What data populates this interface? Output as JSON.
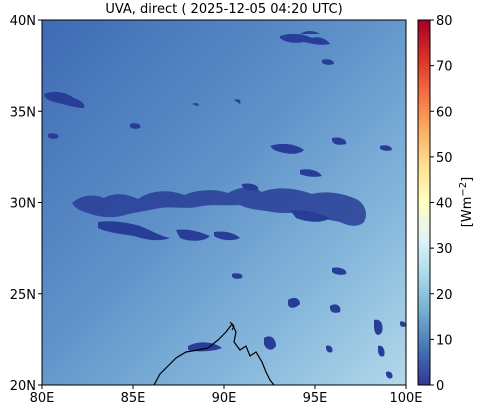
{
  "title": "UVA, direct ( 2025-12-05 04:20 UTC)",
  "map": {
    "lon_range": [
      80,
      100
    ],
    "lat_range": [
      20,
      40
    ],
    "x_ticks": [
      "80E",
      "85E",
      "90E",
      "95E",
      "100E"
    ],
    "y_ticks": [
      "20N",
      "25N",
      "30N",
      "35N",
      "40N"
    ],
    "field_colors": {
      "background_north": "#3f6fb7",
      "background_south": "#b3d8ea",
      "low_value": "#283d97"
    }
  },
  "colorbar": {
    "label_main": "[Wm",
    "label_sup": "−2",
    "label_close": "]",
    "range": [
      0,
      80
    ],
    "ticks": [
      "0",
      "10",
      "20",
      "30",
      "40",
      "50",
      "60",
      "70",
      "80"
    ],
    "colors": [
      "#313695",
      "#4575b4",
      "#74add1",
      "#abd9e9",
      "#e0f3f8",
      "#ffffbf",
      "#fee090",
      "#fdae61",
      "#f46d43",
      "#d73027",
      "#a50026"
    ]
  }
}
